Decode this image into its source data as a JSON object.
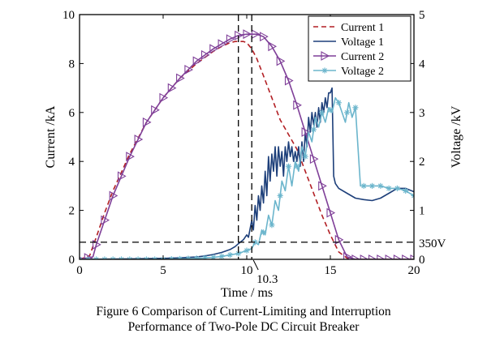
{
  "chart_data": {
    "type": "line",
    "xlabel": "Time / ms",
    "ylabel": "Current /kA",
    "y2label": "Voltage /kV",
    "xlim": [
      0,
      20
    ],
    "ylim": [
      0,
      10
    ],
    "y2lim": [
      0,
      5
    ],
    "x_ticks": [
      0,
      5,
      10,
      15,
      20
    ],
    "y_ticks": [
      0,
      2,
      4,
      6,
      8,
      10
    ],
    "y2_ticks": [
      0,
      1,
      2,
      3,
      4,
      5
    ],
    "grid": false,
    "legend_position": "top-right",
    "vlines": [
      9.5,
      10.3
    ],
    "vline_label": "10.3",
    "threshold": {
      "value": 0.35,
      "axis": "y2",
      "label": "350V"
    },
    "series": [
      {
        "name": "Current 1",
        "axis": "y",
        "color": "#b21f24",
        "style": "dashed",
        "x": [
          0,
          0.6,
          1,
          1.5,
          2,
          3,
          4,
          5,
          6,
          7,
          8,
          8.5,
          9,
          9.3,
          9.5,
          9.8,
          10,
          10.3,
          10.6,
          11,
          11.5,
          12,
          12.5,
          13,
          13.5,
          14,
          14.5,
          15,
          15.5,
          16,
          16.5,
          17,
          18,
          20
        ],
        "y": [
          0,
          0.15,
          0.9,
          1.9,
          2.8,
          4.3,
          5.6,
          6.6,
          7.4,
          8.0,
          8.5,
          8.7,
          8.85,
          8.9,
          8.9,
          8.9,
          8.85,
          8.6,
          8.2,
          7.5,
          6.6,
          5.7,
          5.1,
          4.5,
          3.6,
          2.7,
          1.8,
          1.0,
          0.3,
          0.05,
          0,
          0,
          0,
          0
        ]
      },
      {
        "name": "Voltage 1",
        "axis": "y2",
        "color": "#1d3f7a",
        "style": "solid",
        "x": [
          0,
          3,
          5,
          6,
          7,
          7.5,
          8,
          8.5,
          9,
          9.3,
          9.5,
          9.8,
          10,
          10.1,
          10.3,
          10.4,
          10.5,
          10.6,
          10.7,
          10.8,
          10.9,
          11,
          11.1,
          11.2,
          11.3,
          11.4,
          11.5,
          11.6,
          11.7,
          11.8,
          11.9,
          12,
          12.1,
          12.2,
          12.3,
          12.4,
          12.5,
          12.6,
          12.7,
          12.8,
          12.9,
          13,
          13.1,
          13.2,
          13.3,
          13.4,
          13.5,
          13.6,
          13.7,
          13.8,
          13.9,
          14,
          14.1,
          14.2,
          14.3,
          14.4,
          14.5,
          14.6,
          14.7,
          14.8,
          14.9,
          15,
          15.1,
          15.2,
          15.3,
          15.5,
          16,
          16.5,
          17,
          17.5,
          18,
          18.5,
          19,
          19.5,
          20
        ],
        "y": [
          0,
          0.01,
          0.02,
          0.03,
          0.05,
          0.07,
          0.1,
          0.14,
          0.2,
          0.26,
          0.32,
          0.4,
          0.5,
          0.45,
          0.8,
          0.6,
          1.1,
          0.8,
          1.3,
          1.0,
          1.5,
          1.15,
          1.8,
          1.3,
          2.1,
          1.6,
          2.15,
          1.8,
          2.3,
          1.7,
          2.3,
          1.9,
          2.2,
          1.7,
          2.3,
          2.0,
          2.4,
          2.1,
          2.3,
          2.0,
          2.2,
          2.0,
          2.3,
          1.9,
          2.4,
          2.0,
          2.6,
          2.3,
          2.9,
          2.6,
          3.0,
          2.75,
          3.0,
          2.7,
          3.1,
          2.8,
          3.2,
          3.0,
          3.3,
          3.1,
          3.4,
          3.4,
          3.5,
          1.7,
          1.55,
          1.45,
          1.35,
          1.25,
          1.22,
          1.2,
          1.25,
          1.35,
          1.45,
          1.45,
          1.38
        ]
      },
      {
        "name": "Current 2",
        "axis": "y",
        "color": "#7f3f98",
        "style": "solid-triangle",
        "x": [
          0,
          0.8,
          1,
          1.5,
          2,
          3,
          4,
          5,
          6,
          7,
          8,
          8.5,
          9,
          9.5,
          10,
          10.3,
          10.6,
          11,
          11.5,
          12,
          12.5,
          13,
          13.5,
          14,
          14.5,
          15,
          15.5,
          16,
          16.5,
          17,
          18,
          20
        ],
        "y": [
          0,
          0.1,
          0.6,
          1.6,
          2.6,
          4.2,
          5.6,
          6.6,
          7.4,
          8.1,
          8.6,
          8.8,
          9.0,
          9.15,
          9.2,
          9.2,
          9.2,
          9.1,
          8.7,
          8.1,
          7.3,
          6.3,
          5.2,
          4.1,
          3.0,
          1.9,
          0.8,
          0.1,
          0,
          0,
          0,
          0
        ]
      },
      {
        "name": "Voltage 2",
        "axis": "y2",
        "color": "#6bb5cc",
        "style": "solid-asterisk",
        "x": [
          0,
          3,
          5,
          6,
          7,
          8,
          8.5,
          9,
          9.5,
          10,
          10.3,
          10.5,
          10.7,
          10.9,
          11.1,
          11.3,
          11.5,
          11.7,
          11.9,
          12.1,
          12.3,
          12.5,
          12.7,
          12.9,
          13.1,
          13.3,
          13.5,
          13.7,
          13.9,
          14.1,
          14.3,
          14.5,
          14.7,
          14.9,
          15.1,
          15.3,
          15.5,
          15.7,
          15.9,
          16.1,
          16.3,
          16.5,
          16.8,
          17,
          17.5,
          18,
          18.5,
          19,
          19.5,
          20
        ],
        "y": [
          0,
          0,
          0,
          0.01,
          0.02,
          0.04,
          0.06,
          0.09,
          0.12,
          0.18,
          0.22,
          0.35,
          0.3,
          0.6,
          0.5,
          0.9,
          0.7,
          1.2,
          1.0,
          1.6,
          1.4,
          1.9,
          1.5,
          2.0,
          1.8,
          2.3,
          2.1,
          2.6,
          2.4,
          2.9,
          2.7,
          3.0,
          2.8,
          3.1,
          3.0,
          3.3,
          3.2,
          3.0,
          2.8,
          3.2,
          2.9,
          3.1,
          1.5,
          1.5,
          1.5,
          1.5,
          1.45,
          1.45,
          1.4,
          1.3
        ]
      }
    ]
  },
  "caption": {
    "line1": "Figure 6 Comparison of Current-Limiting and Interruption",
    "line2": "Performance of Two-Pole DC Circuit Breaker"
  }
}
